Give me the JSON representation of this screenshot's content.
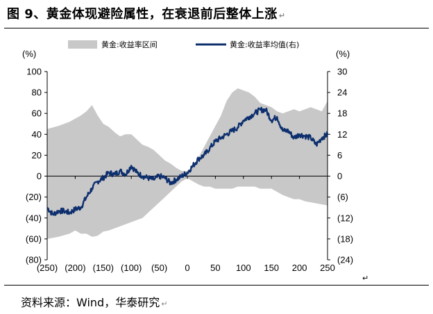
{
  "figure": {
    "title": "图 9、黄金体现避险属性，在衰退前后整体上涨",
    "source": "资料来源：Wind，华泰研究",
    "paragraph_mark": "↵"
  },
  "chart_data": {
    "type": "area",
    "x_ticks": [
      "(250)",
      "(200)",
      "(150)",
      "(100)",
      "(50)",
      "0",
      "50",
      "100",
      "150",
      "200",
      "250"
    ],
    "xlim": [
      -250,
      250
    ],
    "y_left": {
      "unit": "(%)",
      "ylim": [
        -80,
        100
      ],
      "ticks": [
        "100",
        "80",
        "60",
        "40",
        "20",
        "0",
        "(20)",
        "(40)",
        "(60)",
        "(80)"
      ]
    },
    "y_right": {
      "unit": "(%)",
      "ylim": [
        -24,
        30
      ],
      "ticks": [
        "30",
        "24",
        "18",
        "12",
        "6",
        "0",
        "(6)",
        "(12)",
        "(18)",
        "(24)"
      ]
    },
    "legend": [
      {
        "name": "黄金:收益率区间",
        "color": "#c8c8c8",
        "kind": "area"
      },
      {
        "name": "黄金:收益率均值(右)",
        "color": "#0d2f6e",
        "kind": "line"
      }
    ],
    "range_band": {
      "x": [
        -250,
        -230,
        -210,
        -200,
        -190,
        -180,
        -170,
        -160,
        -150,
        -140,
        -130,
        -120,
        -110,
        -100,
        -90,
        -80,
        -70,
        -60,
        -50,
        -40,
        -30,
        -20,
        -10,
        0,
        10,
        20,
        30,
        40,
        50,
        60,
        70,
        80,
        90,
        100,
        110,
        120,
        130,
        140,
        150,
        160,
        170,
        180,
        190,
        200,
        210,
        220,
        230,
        240,
        250
      ],
      "upper": [
        45,
        48,
        52,
        55,
        58,
        62,
        68,
        58,
        50,
        47,
        42,
        38,
        40,
        40,
        35,
        30,
        28,
        25,
        20,
        15,
        12,
        8,
        5,
        5,
        10,
        18,
        28,
        38,
        48,
        58,
        72,
        80,
        84,
        82,
        80,
        76,
        70,
        68,
        66,
        62,
        60,
        62,
        64,
        62,
        64,
        66,
        64,
        62,
        72
      ],
      "lower": [
        -60,
        -58,
        -55,
        -52,
        -55,
        -55,
        -58,
        -57,
        -53,
        -52,
        -50,
        -48,
        -46,
        -44,
        -42,
        -40,
        -35,
        -30,
        -25,
        -20,
        -15,
        -10,
        -5,
        -2,
        -5,
        -8,
        -10,
        -10,
        -12,
        -12,
        -12,
        -12,
        -10,
        -10,
        -10,
        -10,
        -12,
        -12,
        -12,
        -15,
        -18,
        -20,
        -22,
        -22,
        -24,
        -25,
        -26,
        -27,
        -28
      ]
    },
    "mean_line": {
      "x": [
        -250,
        -240,
        -230,
        -220,
        -210,
        -200,
        -190,
        -180,
        -170,
        -160,
        -150,
        -140,
        -130,
        -120,
        -110,
        -100,
        -90,
        -80,
        -70,
        -60,
        -50,
        -40,
        -30,
        -20,
        -10,
        0,
        10,
        20,
        30,
        40,
        50,
        60,
        70,
        80,
        90,
        100,
        110,
        120,
        130,
        140,
        150,
        160,
        170,
        180,
        190,
        200,
        210,
        220,
        230,
        240,
        250
      ],
      "y": [
        -9,
        -11,
        -10,
        -10,
        -10.5,
        -9.5,
        -9,
        -6,
        -3.5,
        -1.5,
        -0.5,
        1,
        0.5,
        1.5,
        0.5,
        3,
        1,
        0,
        -0.5,
        -1,
        0,
        -0.5,
        -2,
        -1,
        0,
        1,
        3,
        5,
        6,
        8,
        10,
        11,
        12,
        13,
        14,
        16,
        17,
        18,
        19,
        19,
        16,
        17,
        13,
        13,
        11,
        12,
        11.5,
        11,
        9,
        11,
        12
      ]
    }
  }
}
